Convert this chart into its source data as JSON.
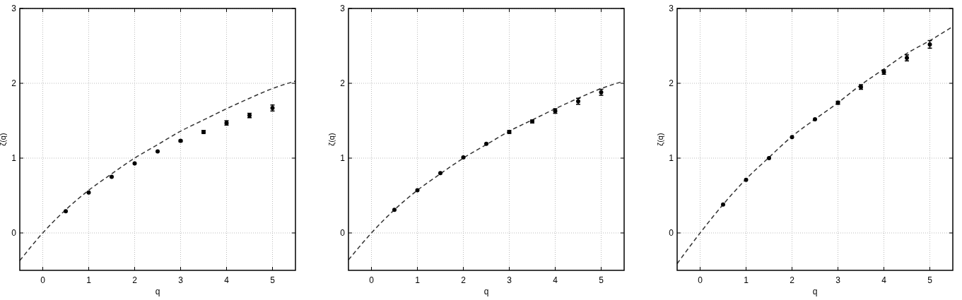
{
  "chart_data": [
    {
      "type": "scatter",
      "xlabel": "q",
      "ylabel": "ζ(q)",
      "xlim": [
        -0.5,
        5.5
      ],
      "ylim": [
        -0.5,
        3
      ],
      "xticks": [
        0,
        1,
        2,
        3,
        4,
        5
      ],
      "yticks": [
        0,
        1,
        2,
        3
      ],
      "grid": true,
      "series": [
        {
          "color": "#000000",
          "marker": "circle",
          "x": [
            0.5,
            1,
            1.5,
            2,
            2.5,
            3,
            3.5,
            4,
            4.5,
            5
          ],
          "values": [
            0.29,
            0.54,
            0.75,
            0.93,
            1.09,
            1.23,
            1.35,
            1.47,
            1.57,
            1.67
          ],
          "errors": [
            null,
            null,
            null,
            null,
            null,
            0.01,
            0.02,
            0.03,
            0.03,
            0.04
          ]
        },
        {
          "type": "line",
          "color": "#333333",
          "line_style": "dashed",
          "x": [
            -0.5,
            0,
            0.5,
            1,
            1.5,
            2,
            2.5,
            3,
            3.5,
            4,
            4.5,
            5,
            5.5
          ],
          "values": [
            -0.37,
            0,
            0.31,
            0.57,
            0.79,
            1.0,
            1.18,
            1.36,
            1.51,
            1.66,
            1.8,
            1.93,
            2.03
          ]
        }
      ]
    },
    {
      "type": "scatter",
      "xlabel": "q",
      "ylabel": "ζ(q)",
      "xlim": [
        -0.5,
        5.5
      ],
      "ylim": [
        -0.5,
        3
      ],
      "xticks": [
        0,
        1,
        2,
        3,
        4,
        5
      ],
      "yticks": [
        0,
        1,
        2,
        3
      ],
      "grid": true,
      "series": [
        {
          "color": "#000000",
          "marker": "circle",
          "x": [
            0.5,
            1,
            1.5,
            2,
            2.5,
            3,
            3.5,
            4,
            4.5,
            5
          ],
          "values": [
            0.31,
            0.57,
            0.8,
            1.01,
            1.19,
            1.35,
            1.49,
            1.63,
            1.76,
            1.88
          ],
          "errors": [
            null,
            null,
            null,
            null,
            null,
            0.02,
            0.02,
            0.03,
            0.04,
            0.04
          ]
        },
        {
          "type": "line",
          "color": "#333333",
          "line_style": "dashed",
          "x": [
            -0.5,
            0,
            0.5,
            1,
            1.5,
            2,
            2.5,
            3,
            3.5,
            4,
            4.5,
            5,
            5.5
          ],
          "values": [
            -0.36,
            0,
            0.31,
            0.57,
            0.79,
            1.0,
            1.18,
            1.36,
            1.51,
            1.66,
            1.8,
            1.93,
            2.03
          ]
        }
      ]
    },
    {
      "type": "scatter",
      "xlabel": "q",
      "ylabel": "ζ(q)",
      "xlim": [
        -0.5,
        5.5
      ],
      "ylim": [
        -0.5,
        3
      ],
      "xticks": [
        0,
        1,
        2,
        3,
        4,
        5
      ],
      "yticks": [
        0,
        1,
        2,
        3
      ],
      "grid": true,
      "series": [
        {
          "color": "#000000",
          "marker": "circle",
          "x": [
            0.5,
            1,
            1.5,
            2,
            2.5,
            3,
            3.5,
            4,
            4.5,
            5
          ],
          "values": [
            0.38,
            0.71,
            1.0,
            1.28,
            1.52,
            1.74,
            1.95,
            2.15,
            2.34,
            2.52
          ],
          "errors": [
            null,
            null,
            null,
            null,
            null,
            0.02,
            0.03,
            0.03,
            0.04,
            0.05
          ]
        },
        {
          "type": "line",
          "color": "#333333",
          "line_style": "dashed",
          "x": [
            -0.5,
            0,
            0.5,
            1,
            1.5,
            2,
            2.5,
            3,
            3.5,
            4,
            4.5,
            5,
            5.5
          ],
          "values": [
            -0.41,
            0,
            0.38,
            0.72,
            1.01,
            1.29,
            1.52,
            1.74,
            1.98,
            2.19,
            2.4,
            2.57,
            2.76
          ]
        }
      ]
    }
  ]
}
